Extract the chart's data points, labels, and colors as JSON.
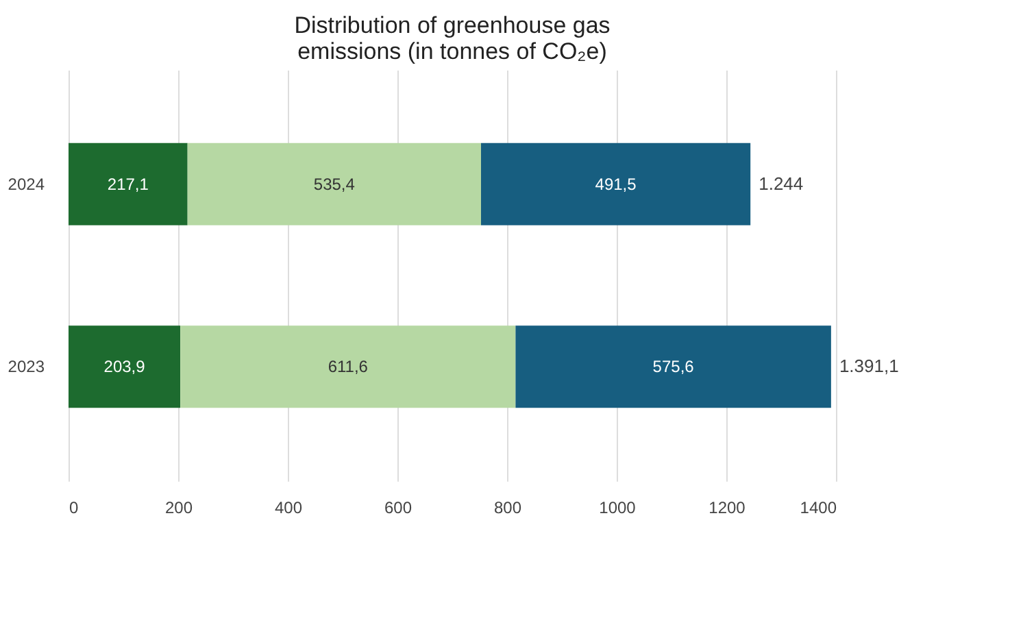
{
  "chart_data": {
    "type": "bar",
    "orientation": "horizontal",
    "stacked": true,
    "title": "Distribution of greenhouse gas emissions (in tonnes of CO₂e)",
    "categories": [
      "2024",
      "2023"
    ],
    "series": [
      {
        "color": "#1d6b2f",
        "values": [
          217.1,
          203.9
        ],
        "value_labels": [
          "217,1",
          "203,9"
        ]
      },
      {
        "color": "#b6d8a3",
        "values": [
          535.4,
          611.6
        ],
        "value_labels": [
          "535,4",
          "611,6"
        ]
      },
      {
        "color": "#175e80",
        "values": [
          491.5,
          575.6
        ],
        "value_labels": [
          "491,5",
          "575,6"
        ]
      }
    ],
    "totals": [
      "1.244",
      "1.391,1"
    ],
    "xlim": [
      0,
      1400
    ],
    "xticks": [
      0,
      200,
      400,
      600,
      800,
      1000,
      1200,
      1400
    ],
    "grid": "x"
  }
}
